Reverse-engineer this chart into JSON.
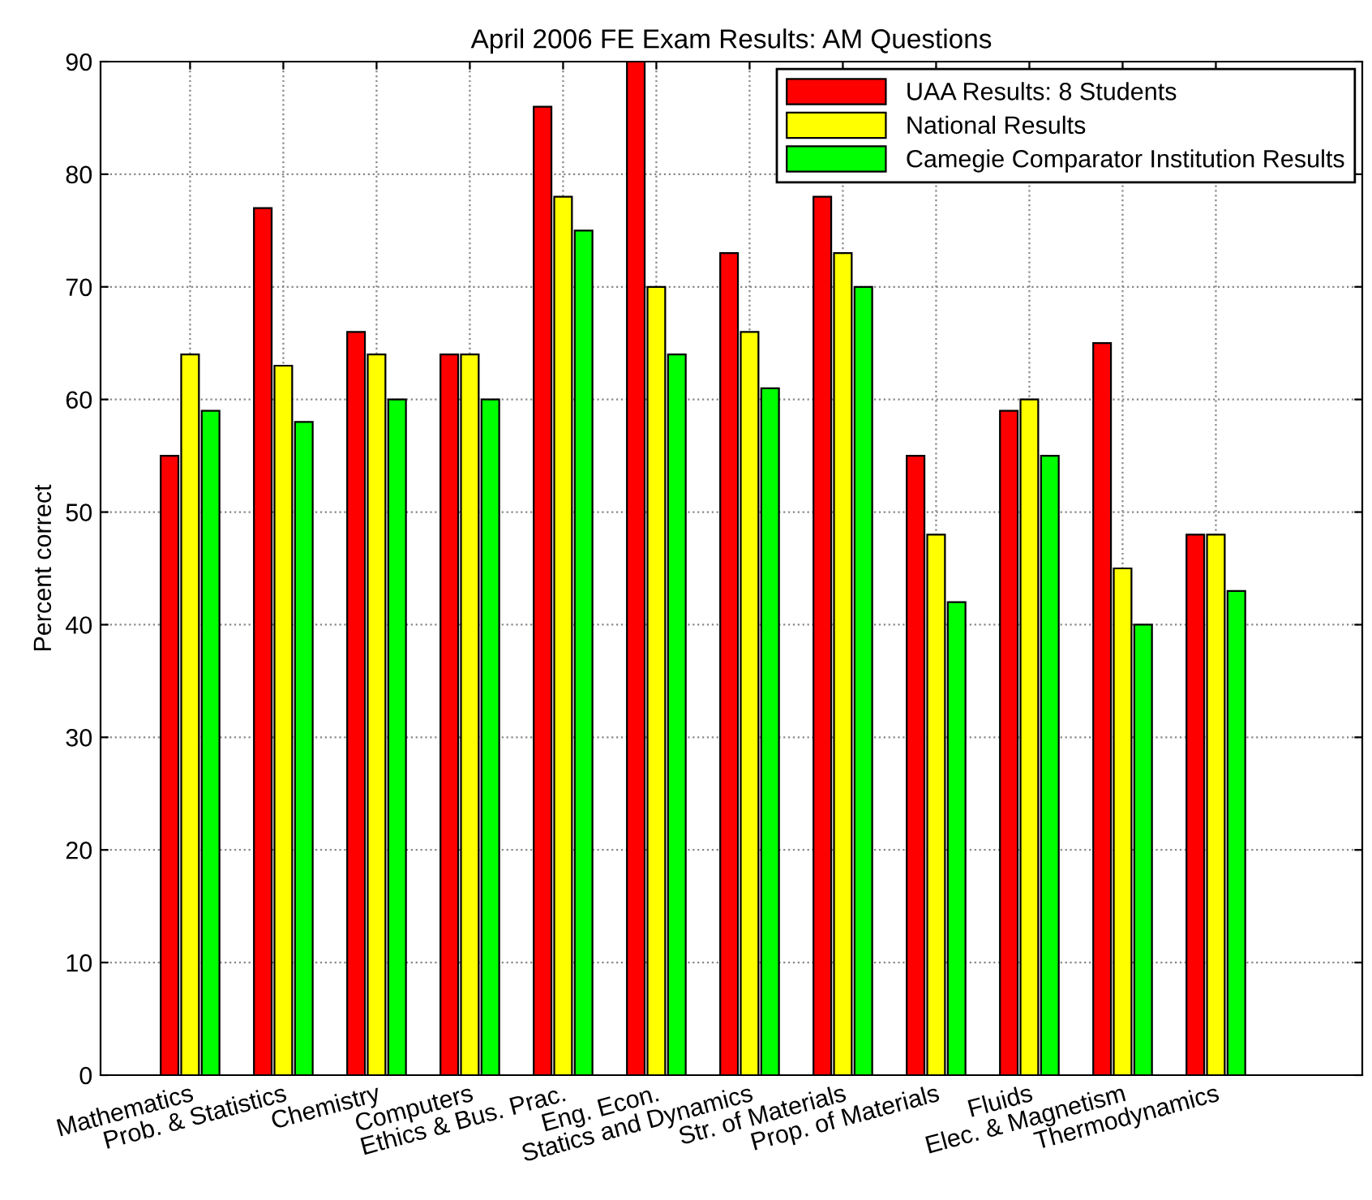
{
  "chart_data": {
    "type": "bar",
    "title": "April 2006 FE Exam Results: AM Questions",
    "ylabel": "Percent correct",
    "categories": [
      "Mathematics",
      "Prob. & Statistics",
      "Chemistry",
      "Computers",
      "Ethics & Bus. Prac.",
      "Eng. Econ.",
      "Statics and Dynamics",
      "Str. of Materials",
      "Prop. of Materials",
      "Fluids",
      "Elec. & Magnetism",
      "Thermodynamics"
    ],
    "series": [
      {
        "name": "UAA Results: 8 Students",
        "color": "#ff0000",
        "values": [
          55,
          77,
          66,
          64,
          86,
          90,
          73,
          78,
          55,
          59,
          65,
          48
        ]
      },
      {
        "name": "National Results",
        "color": "#ffff00",
        "values": [
          64,
          63,
          64,
          64,
          78,
          70,
          66,
          73,
          48,
          60,
          45,
          48
        ]
      },
      {
        "name": "Camegie Comparator Institution Results",
        "color": "#00ff00",
        "values": [
          59,
          58,
          60,
          60,
          75,
          64,
          61,
          70,
          42,
          55,
          40,
          43
        ]
      }
    ],
    "ylim": [
      0,
      90
    ],
    "yticks": [
      0,
      10,
      20,
      30,
      40,
      50,
      60,
      70,
      80,
      90
    ],
    "grid": true,
    "legend": "top right"
  }
}
